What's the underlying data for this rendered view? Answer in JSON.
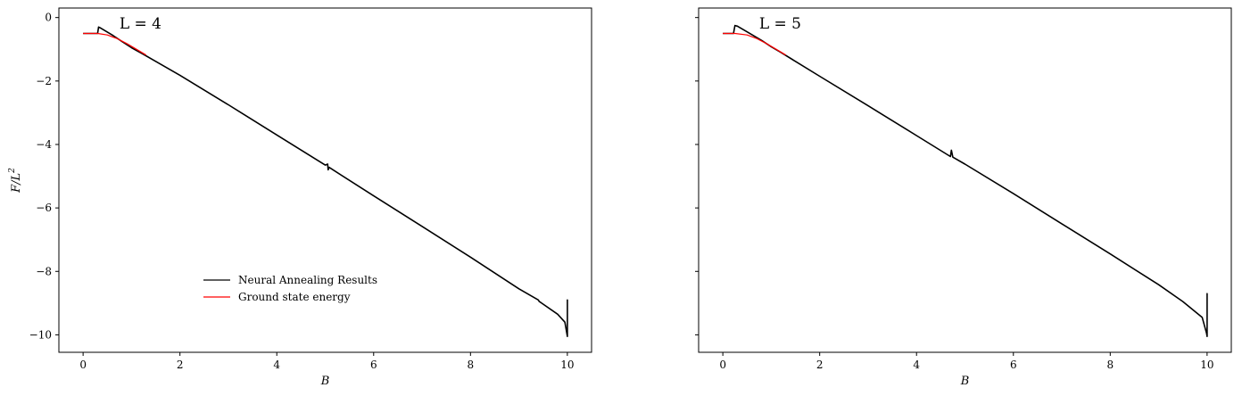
{
  "chart_data": [
    {
      "type": "line",
      "annotation": "L = 4",
      "xlabel": "B",
      "ylabel": "F/L",
      "ylabel_sup": "2",
      "xlim": [
        -0.5,
        10.5
      ],
      "ylim": [
        -10.55,
        0.3
      ],
      "xticks": [
        0,
        2,
        4,
        6,
        8,
        10
      ],
      "yticks": [
        0,
        -2,
        -4,
        -6,
        -8,
        -10
      ],
      "xtick_labels": [
        "0",
        "2",
        "4",
        "6",
        "8",
        "10"
      ],
      "ytick_labels": [
        "0",
        "−2",
        "−4",
        "−6",
        "−8",
        "−10"
      ],
      "grid": false,
      "legend": {
        "position": "lower-center",
        "entries": [
          {
            "label": "Neural Annealing Results",
            "color": "#000000"
          },
          {
            "label": "Ground state energy",
            "color": "#ff0000"
          }
        ]
      },
      "series": [
        {
          "name": "Neural Annealing Results",
          "color": "#000000",
          "x": [
            0,
            0.3,
            0.32,
            0.35,
            0.6,
            0.8,
            1.0,
            1.2,
            1.5,
            2,
            3,
            4,
            5,
            5.05,
            5.06,
            5.08,
            6,
            7,
            8,
            9,
            9.4,
            9.42,
            9.45,
            9.8,
            9.95,
            9.99,
            10.0,
            10.0,
            10.0
          ],
          "y": [
            -0.5,
            -0.5,
            -0.3,
            -0.32,
            -0.55,
            -0.75,
            -0.95,
            -1.12,
            -1.38,
            -1.82,
            -2.75,
            -3.7,
            -4.65,
            -4.62,
            -4.8,
            -4.72,
            -5.62,
            -6.58,
            -7.55,
            -8.55,
            -8.9,
            -8.95,
            -8.98,
            -9.35,
            -9.6,
            -9.95,
            -10.05,
            -8.9,
            -10.0
          ]
        },
        {
          "name": "Ground state energy",
          "color": "#ff0000",
          "x": [
            0,
            0.3,
            0.5,
            0.7,
            0.9,
            1.1,
            1.3
          ],
          "y": [
            -0.5,
            -0.5,
            -0.55,
            -0.66,
            -0.82,
            -1.0,
            -1.18
          ]
        }
      ]
    },
    {
      "type": "line",
      "annotation": "L = 5",
      "xlabel": "B",
      "ylabel": "",
      "xlim": [
        -0.5,
        10.5
      ],
      "ylim": [
        -10.55,
        0.3
      ],
      "xticks": [
        0,
        2,
        4,
        6,
        8,
        10
      ],
      "yticks": [
        0,
        -2,
        -4,
        -6,
        -8,
        -10
      ],
      "xtick_labels": [
        "0",
        "2",
        "4",
        "6",
        "8",
        "10"
      ],
      "ytick_labels": [],
      "grid": false,
      "series": [
        {
          "name": "Neural Annealing Results",
          "color": "#000000",
          "x": [
            0,
            0.22,
            0.25,
            0.3,
            0.5,
            0.8,
            1.0,
            1.2,
            1.5,
            2,
            3,
            4,
            4.7,
            4.72,
            4.75,
            5,
            6,
            7,
            8,
            9,
            9.5,
            9.9,
            9.99,
            10.0,
            10.0,
            10.0
          ],
          "y": [
            -0.5,
            -0.5,
            -0.25,
            -0.27,
            -0.45,
            -0.72,
            -0.92,
            -1.1,
            -1.38,
            -1.85,
            -2.78,
            -3.72,
            -4.38,
            -4.18,
            -4.4,
            -4.62,
            -5.55,
            -6.5,
            -7.45,
            -8.42,
            -8.95,
            -9.45,
            -9.95,
            -10.05,
            -8.7,
            -10.0
          ]
        },
        {
          "name": "Ground state energy",
          "color": "#ff0000",
          "x": [
            0,
            0.25,
            0.5,
            0.7,
            0.9,
            1.1,
            1.3
          ],
          "y": [
            -0.5,
            -0.5,
            -0.55,
            -0.66,
            -0.82,
            -1.0,
            -1.18
          ]
        }
      ]
    }
  ]
}
